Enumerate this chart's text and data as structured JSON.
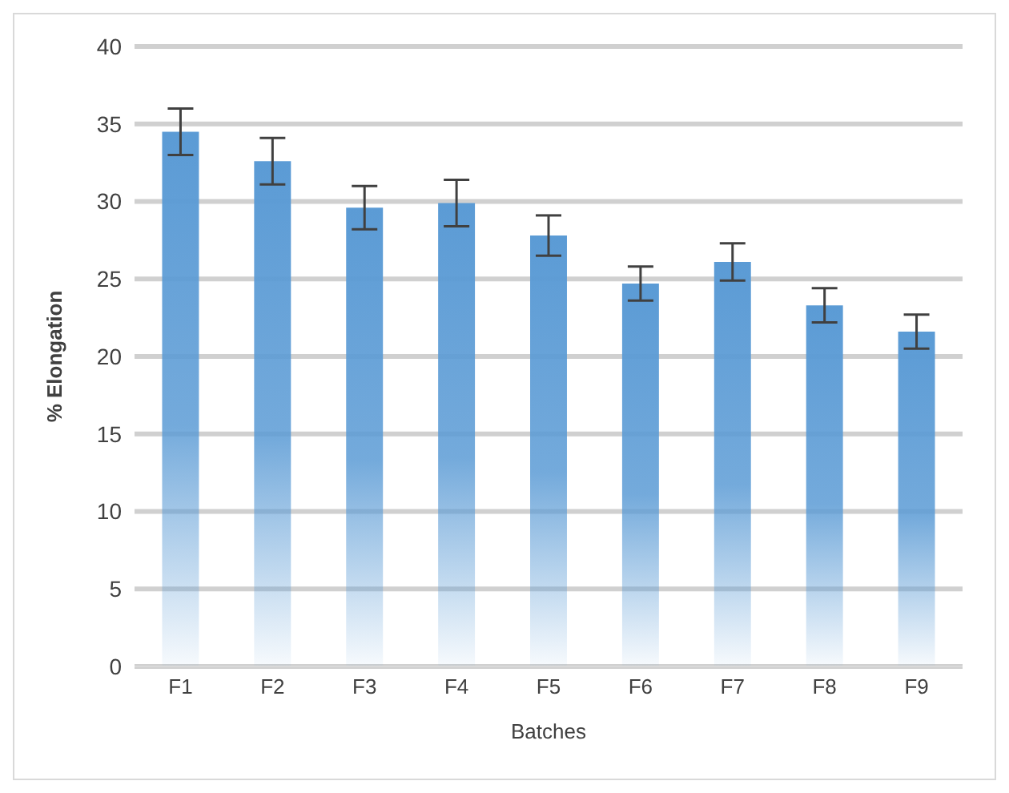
{
  "chart_data": {
    "type": "bar",
    "xlabel": "Batches",
    "ylabel": "% Elongation",
    "categories": [
      "F1",
      "F2",
      "F3",
      "F4",
      "F5",
      "F6",
      "F7",
      "F8",
      "F9"
    ],
    "values": [
      34.5,
      32.6,
      29.6,
      29.9,
      27.8,
      24.7,
      26.1,
      23.3,
      21.6
    ],
    "errors": [
      1.5,
      1.5,
      1.4,
      1.5,
      1.3,
      1.1,
      1.2,
      1.1,
      1.1
    ],
    "color": "#5b9bd5",
    "ylim": [
      0,
      40
    ],
    "yticks": [
      0,
      5,
      10,
      15,
      20,
      25,
      30,
      35,
      40
    ],
    "grid": "y"
  }
}
